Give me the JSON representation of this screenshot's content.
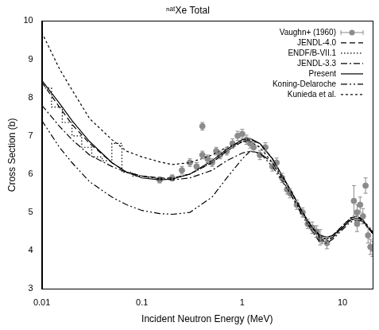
{
  "chart_data": {
    "type": "line",
    "title": "ⁿᵃᵗXe Total",
    "x_label": "Incident Neutron Energy (MeV)",
    "y_label": "Cross Section (b)",
    "log": "x",
    "xlim": [
      0.01,
      20
    ],
    "xticks": [
      0.01,
      0.1,
      1,
      10
    ],
    "ylim": [
      3,
      10
    ],
    "yticks": [
      3,
      4,
      5,
      6,
      7,
      8,
      9,
      10
    ],
    "grid": false,
    "legend": "upper right",
    "series": [
      {
        "name": "Vaughn+ (1960)",
        "type": "scatter",
        "marker": "circle",
        "color": "#8c8c8c",
        "x": [
          0.15,
          0.2,
          0.25,
          0.3,
          0.35,
          0.4,
          0.4,
          0.45,
          0.5,
          0.55,
          0.6,
          0.7,
          0.8,
          0.9,
          1.0,
          1.1,
          1.2,
          1.3,
          1.5,
          1.7,
          2.0,
          2.2,
          2.5,
          2.8,
          3.0,
          3.5,
          4.0,
          4.5,
          5.0,
          5.5,
          6.0,
          7.0,
          13,
          14,
          14,
          15,
          16,
          17,
          18,
          19,
          20
        ],
        "values": [
          5.85,
          5.9,
          6.1,
          6.3,
          6.2,
          7.25,
          6.5,
          6.4,
          6.3,
          6.6,
          6.5,
          6.6,
          6.8,
          7.0,
          7.05,
          6.9,
          6.8,
          6.7,
          6.5,
          6.7,
          6.2,
          6.3,
          5.9,
          5.6,
          5.5,
          5.2,
          5.0,
          4.7,
          4.6,
          4.5,
          4.35,
          4.2,
          5.3,
          5.0,
          4.7,
          5.2,
          4.9,
          5.7,
          4.4,
          4.1,
          4.05
        ],
        "errors": [
          0.08,
          0.08,
          0.1,
          0.1,
          0.1,
          0.1,
          0.1,
          0.1,
          0.1,
          0.1,
          0.1,
          0.1,
          0.12,
          0.12,
          0.12,
          0.12,
          0.12,
          0.12,
          0.12,
          0.12,
          0.12,
          0.12,
          0.12,
          0.12,
          0.12,
          0.12,
          0.12,
          0.12,
          0.15,
          0.15,
          0.2,
          0.15,
          0.4,
          0.2,
          0.2,
          0.2,
          0.2,
          0.2,
          0.2,
          0.2,
          0.2
        ]
      },
      {
        "name": "JENDL-4.0",
        "type": "line",
        "line_style": "dashed",
        "color": "#000000",
        "x": [
          0.01,
          0.015,
          0.02,
          0.03,
          0.05,
          0.07,
          0.1,
          0.15,
          0.2,
          0.3,
          0.5,
          0.7,
          1.0,
          1.2,
          1.5,
          2,
          3,
          4,
          5,
          6,
          7,
          8,
          10,
          12,
          14,
          16,
          18,
          20
        ],
        "values": [
          8.4,
          7.75,
          7.3,
          6.8,
          6.3,
          6.05,
          5.95,
          5.9,
          5.9,
          6.0,
          6.3,
          6.6,
          6.85,
          6.9,
          6.8,
          6.4,
          5.6,
          5.0,
          4.6,
          4.35,
          4.3,
          4.4,
          4.65,
          4.85,
          4.9,
          4.8,
          4.6,
          4.45
        ]
      },
      {
        "name": "ENDF/B-VII.1",
        "type": "line",
        "line_style": "dotted",
        "color": "#000000",
        "x": [
          0.01,
          0.0125,
          0.0125,
          0.016,
          0.016,
          0.02,
          0.02,
          0.025,
          0.025,
          0.0315,
          0.0315,
          0.04,
          0.04,
          0.05,
          0.05,
          0.063,
          0.063,
          0.08,
          0.08,
          0.1,
          0.15,
          0.2,
          0.3,
          0.5,
          0.7,
          1.0,
          1.2,
          1.5,
          2,
          3,
          4,
          5,
          6,
          7,
          8,
          10,
          12,
          14,
          16,
          18,
          20
        ],
        "values": [
          8.25,
          8.25,
          7.75,
          7.75,
          7.35,
          7.35,
          7.0,
          7.0,
          6.7,
          6.7,
          6.45,
          6.45,
          6.35,
          6.35,
          6.8,
          6.8,
          6.05,
          6.05,
          5.95,
          5.95,
          5.88,
          5.88,
          6.0,
          6.3,
          6.6,
          6.85,
          6.9,
          6.8,
          6.4,
          5.6,
          5.0,
          4.6,
          4.35,
          4.3,
          4.4,
          4.65,
          4.85,
          4.9,
          4.8,
          4.6,
          4.45
        ]
      },
      {
        "name": "JENDL-3.3",
        "type": "line",
        "line_style": "dashdot",
        "color": "#000000",
        "x": [
          0.01,
          0.015,
          0.02,
          0.03,
          0.05,
          0.07,
          0.1,
          0.15,
          0.2,
          0.3,
          0.5,
          0.7,
          1.0,
          1.2,
          1.5,
          2,
          3,
          4,
          5,
          6,
          7,
          8,
          10,
          12,
          14,
          16,
          18,
          20
        ],
        "values": [
          7.8,
          7.25,
          6.9,
          6.5,
          6.2,
          6.05,
          5.95,
          5.88,
          5.85,
          5.9,
          6.1,
          6.35,
          6.55,
          6.6,
          6.55,
          6.3,
          5.6,
          5.0,
          4.5,
          4.25,
          4.25,
          4.35,
          4.6,
          4.8,
          4.85,
          4.75,
          4.6,
          4.5
        ]
      },
      {
        "name": "Present",
        "type": "line",
        "line_style": "solid",
        "color": "#000000",
        "x": [
          0.01,
          0.015,
          0.02,
          0.03,
          0.05,
          0.07,
          0.1,
          0.15,
          0.2,
          0.3,
          0.5,
          0.7,
          1.0,
          1.2,
          1.5,
          2,
          3,
          4,
          5,
          6,
          7,
          8,
          10,
          12,
          14,
          16,
          18,
          20
        ],
        "values": [
          8.45,
          7.85,
          7.4,
          6.85,
          6.3,
          6.05,
          5.9,
          5.85,
          5.87,
          6.0,
          6.35,
          6.65,
          6.9,
          6.93,
          6.8,
          6.4,
          5.6,
          5.0,
          4.6,
          4.4,
          4.35,
          4.4,
          4.6,
          4.8,
          4.85,
          4.8,
          4.6,
          4.45
        ]
      },
      {
        "name": "Koning-Delaroche",
        "type": "line",
        "line_style": "dashdotdot",
        "color": "#000000",
        "x": [
          0.01,
          0.015,
          0.02,
          0.03,
          0.05,
          0.07,
          0.1,
          0.15,
          0.2,
          0.3,
          0.5,
          0.7,
          1.0,
          1.2,
          1.5,
          2,
          3,
          4,
          5,
          6,
          7,
          8,
          10,
          12,
          14,
          16,
          18,
          20
        ],
        "values": [
          7.4,
          6.7,
          6.3,
          5.8,
          5.4,
          5.2,
          5.05,
          4.97,
          4.95,
          5.0,
          5.4,
          5.9,
          6.4,
          6.6,
          6.55,
          6.2,
          5.5,
          4.9,
          4.5,
          4.2,
          4.2,
          4.3,
          4.55,
          4.75,
          4.8,
          4.75,
          4.6,
          4.5
        ]
      },
      {
        "name": "Kunieda et al.",
        "type": "line",
        "line_style": "shortdash",
        "color": "#000000",
        "x": [
          0.01,
          0.015,
          0.02,
          0.03,
          0.05,
          0.07,
          0.1,
          0.15,
          0.2,
          0.3,
          0.5,
          0.7,
          1.0,
          1.2,
          1.5,
          2,
          3,
          4,
          5,
          6,
          7,
          8,
          10,
          12,
          14,
          16,
          18,
          20
        ],
        "values": [
          9.7,
          8.75,
          8.2,
          7.45,
          6.9,
          6.6,
          6.45,
          6.32,
          6.25,
          6.3,
          6.5,
          6.7,
          6.85,
          6.85,
          6.7,
          6.3,
          5.5,
          4.95,
          4.6,
          4.3,
          4.25,
          4.35,
          4.6,
          4.85,
          4.9,
          4.8,
          4.65,
          4.5
        ]
      }
    ]
  }
}
